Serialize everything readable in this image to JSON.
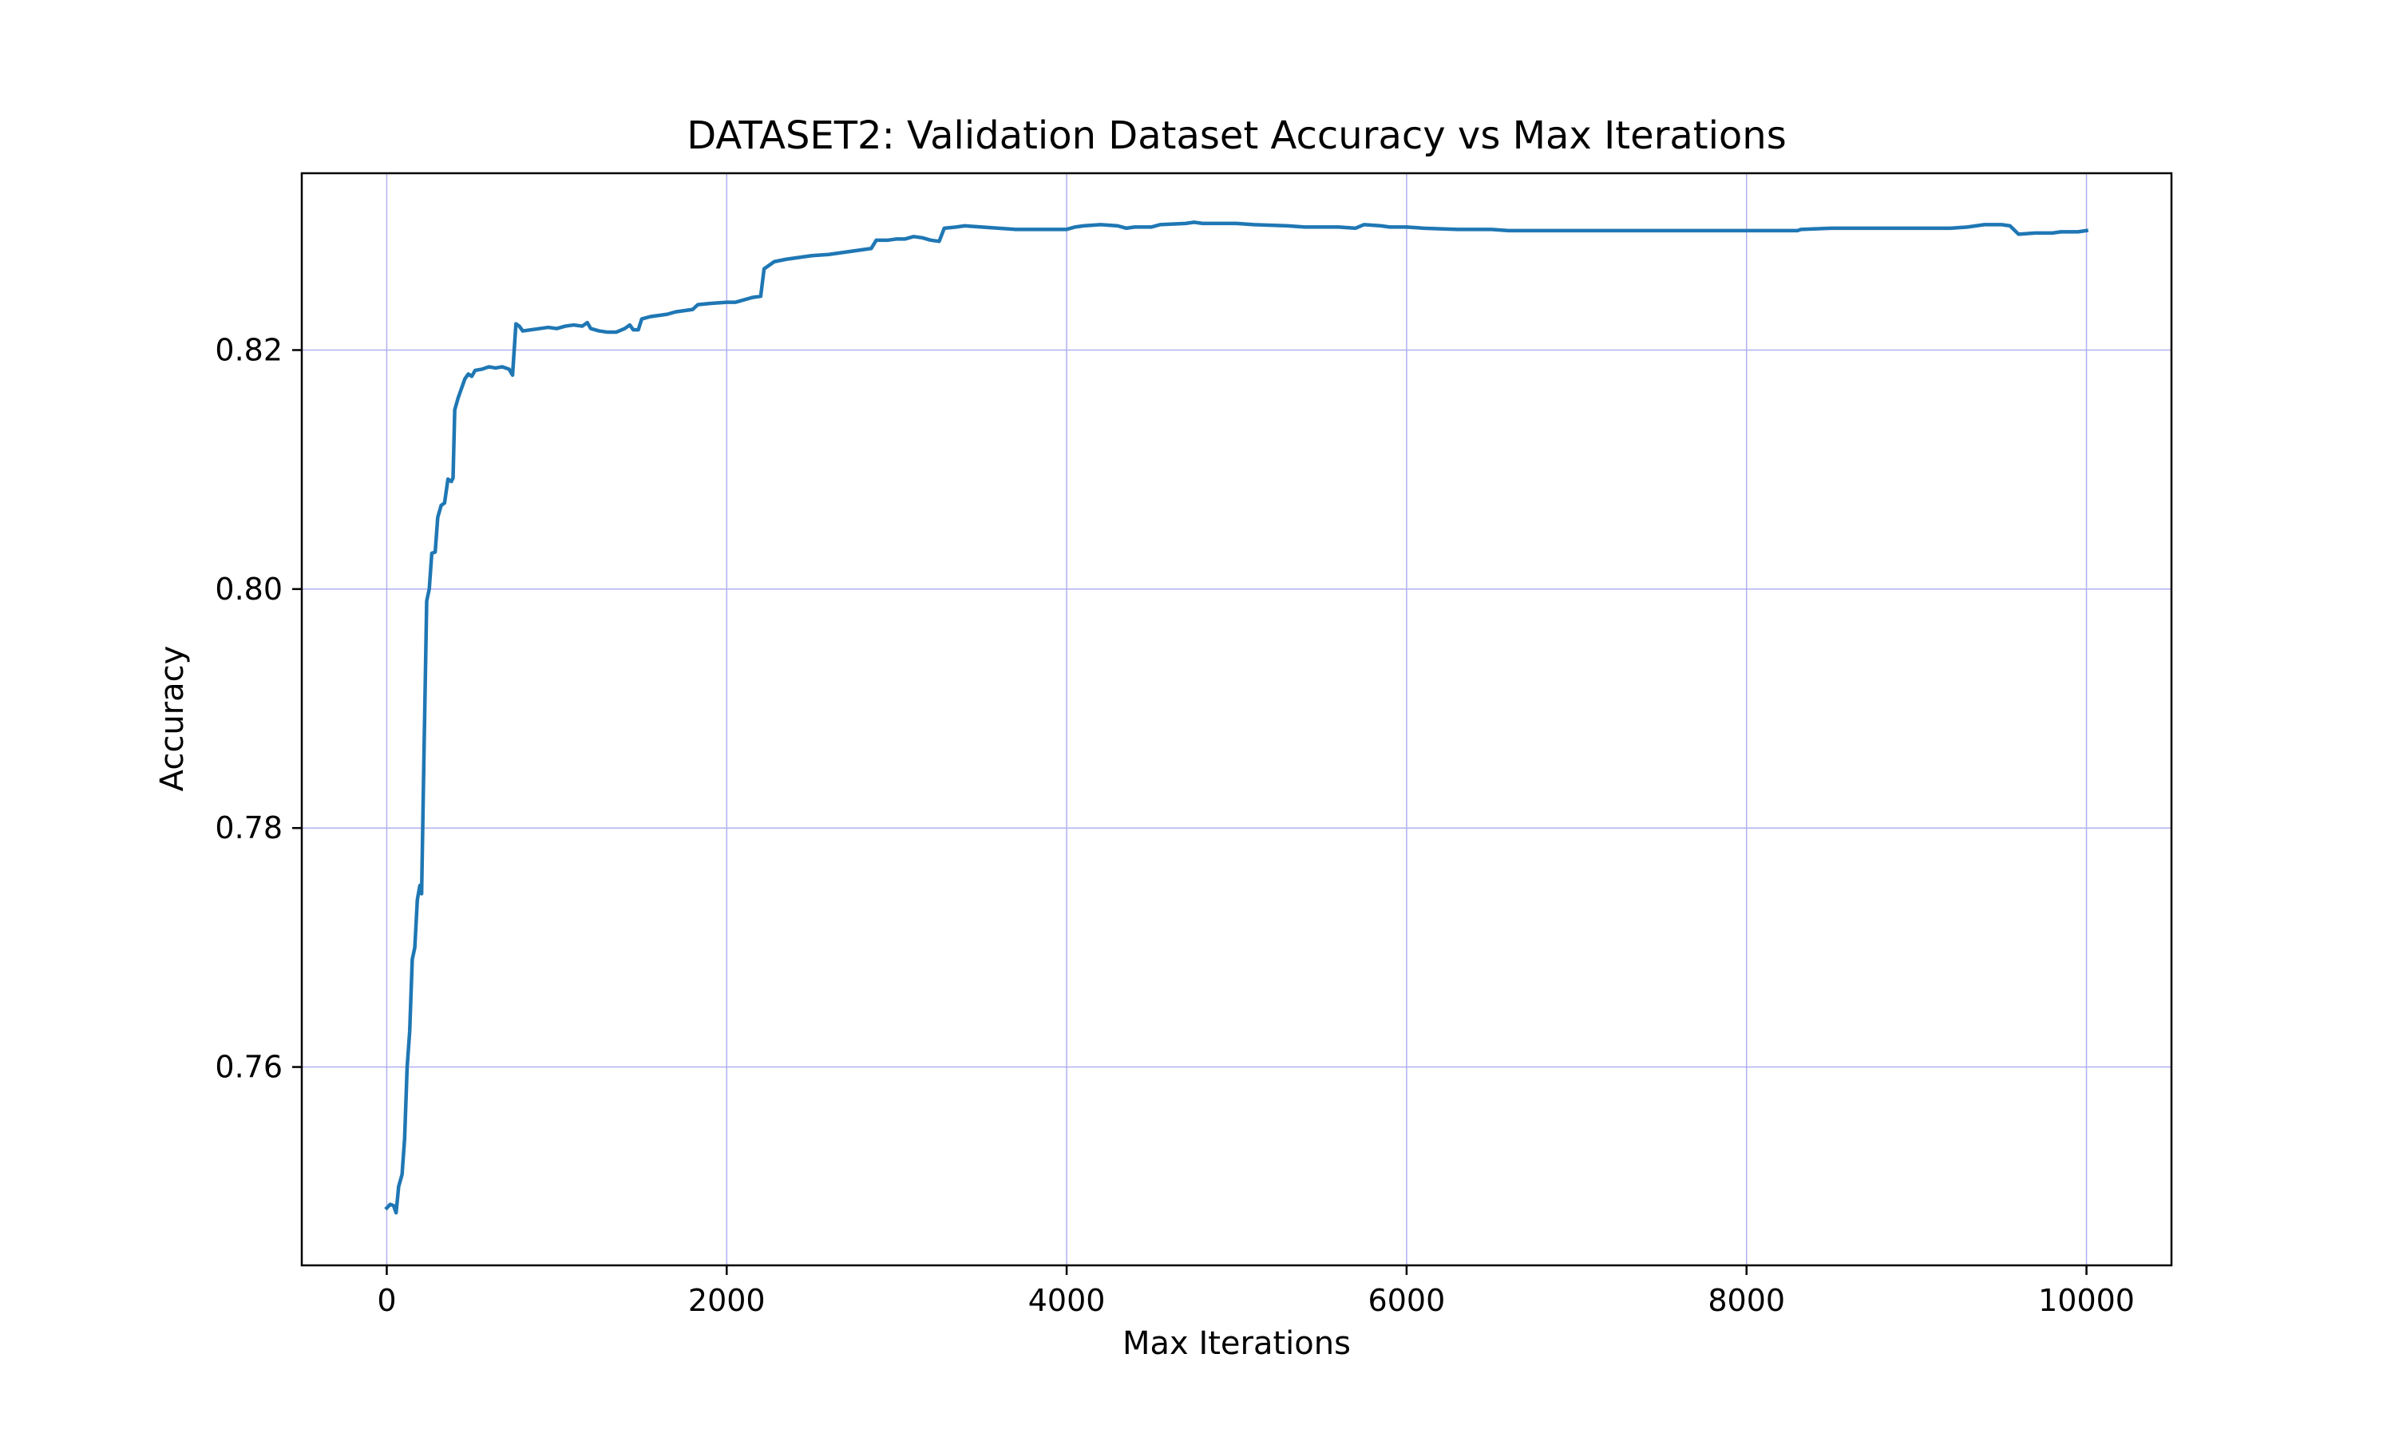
{
  "chart_data": {
    "type": "line",
    "title": "DATASET2: Validation Dataset Accuracy vs Max Iterations",
    "xlabel": "Max Iterations",
    "ylabel": "Accuracy",
    "xlim": [
      -500,
      10500
    ],
    "ylim": [
      0.7434,
      0.8348
    ],
    "x_ticks": [
      0,
      2000,
      4000,
      6000,
      8000,
      10000
    ],
    "x_tick_labels": [
      "0",
      "2000",
      "4000",
      "6000",
      "8000",
      "10000"
    ],
    "y_ticks": [
      0.76,
      0.78,
      0.8,
      0.82
    ],
    "y_tick_labels": [
      "0.76",
      "0.78",
      "0.80",
      "0.82"
    ],
    "grid": true,
    "grid_color": "#b0b0f0",
    "line_color": "#1f77b4",
    "series": [
      {
        "values": [
          [
            0,
            0.7482
          ],
          [
            20,
            0.7485
          ],
          [
            40,
            0.7484
          ],
          [
            55,
            0.7478
          ],
          [
            70,
            0.75
          ],
          [
            90,
            0.751
          ],
          [
            105,
            0.754
          ],
          [
            120,
            0.76
          ],
          [
            135,
            0.763
          ],
          [
            150,
            0.769
          ],
          [
            165,
            0.77
          ],
          [
            180,
            0.774
          ],
          [
            195,
            0.7752
          ],
          [
            205,
            0.7745
          ],
          [
            220,
            0.787
          ],
          [
            235,
            0.799
          ],
          [
            250,
            0.8
          ],
          [
            265,
            0.803
          ],
          [
            285,
            0.8031
          ],
          [
            300,
            0.806
          ],
          [
            320,
            0.807
          ],
          [
            340,
            0.8072
          ],
          [
            360,
            0.8092
          ],
          [
            380,
            0.809
          ],
          [
            390,
            0.8093
          ],
          [
            400,
            0.815
          ],
          [
            420,
            0.816
          ],
          [
            440,
            0.8168
          ],
          [
            460,
            0.8176
          ],
          [
            480,
            0.818
          ],
          [
            500,
            0.8178
          ],
          [
            520,
            0.8183
          ],
          [
            560,
            0.8184
          ],
          [
            600,
            0.8186
          ],
          [
            640,
            0.8185
          ],
          [
            680,
            0.8186
          ],
          [
            720,
            0.8184
          ],
          [
            740,
            0.8179
          ],
          [
            760,
            0.8222
          ],
          [
            780,
            0.822
          ],
          [
            800,
            0.8216
          ],
          [
            850,
            0.8217
          ],
          [
            900,
            0.8218
          ],
          [
            950,
            0.8219
          ],
          [
            1000,
            0.8218
          ],
          [
            1050,
            0.822
          ],
          [
            1100,
            0.8221
          ],
          [
            1150,
            0.822
          ],
          [
            1180,
            0.8223
          ],
          [
            1200,
            0.8218
          ],
          [
            1250,
            0.8216
          ],
          [
            1300,
            0.8215
          ],
          [
            1350,
            0.8215
          ],
          [
            1400,
            0.8218
          ],
          [
            1430,
            0.8221
          ],
          [
            1450,
            0.8217
          ],
          [
            1480,
            0.8217
          ],
          [
            1500,
            0.8226
          ],
          [
            1550,
            0.8228
          ],
          [
            1600,
            0.8229
          ],
          [
            1650,
            0.823
          ],
          [
            1700,
            0.8232
          ],
          [
            1750,
            0.8233
          ],
          [
            1800,
            0.8234
          ],
          [
            1830,
            0.8238
          ],
          [
            1900,
            0.8239
          ],
          [
            2000,
            0.824
          ],
          [
            2050,
            0.824
          ],
          [
            2100,
            0.8242
          ],
          [
            2150,
            0.8244
          ],
          [
            2200,
            0.8245
          ],
          [
            2220,
            0.8268
          ],
          [
            2240,
            0.827
          ],
          [
            2280,
            0.8274
          ],
          [
            2350,
            0.8276
          ],
          [
            2400,
            0.8277
          ],
          [
            2500,
            0.8279
          ],
          [
            2600,
            0.828
          ],
          [
            2700,
            0.8282
          ],
          [
            2800,
            0.8284
          ],
          [
            2850,
            0.8285
          ],
          [
            2880,
            0.8292
          ],
          [
            2950,
            0.8292
          ],
          [
            3000,
            0.8293
          ],
          [
            3050,
            0.8293
          ],
          [
            3100,
            0.8295
          ],
          [
            3150,
            0.8294
          ],
          [
            3200,
            0.8292
          ],
          [
            3250,
            0.8291
          ],
          [
            3280,
            0.8302
          ],
          [
            3350,
            0.8303
          ],
          [
            3400,
            0.8304
          ],
          [
            3500,
            0.8303
          ],
          [
            3600,
            0.8302
          ],
          [
            3700,
            0.8301
          ],
          [
            3800,
            0.8301
          ],
          [
            4000,
            0.8301
          ],
          [
            4050,
            0.8303
          ],
          [
            4100,
            0.8304
          ],
          [
            4200,
            0.8305
          ],
          [
            4300,
            0.8304
          ],
          [
            4350,
            0.8302
          ],
          [
            4400,
            0.8303
          ],
          [
            4500,
            0.8303
          ],
          [
            4550,
            0.8305
          ],
          [
            4700,
            0.8306
          ],
          [
            4750,
            0.8307
          ],
          [
            4800,
            0.8306
          ],
          [
            5000,
            0.8306
          ],
          [
            5100,
            0.8305
          ],
          [
            5300,
            0.8304
          ],
          [
            5400,
            0.8303
          ],
          [
            5600,
            0.8303
          ],
          [
            5700,
            0.8302
          ],
          [
            5750,
            0.8305
          ],
          [
            5850,
            0.8304
          ],
          [
            5900,
            0.8303
          ],
          [
            6000,
            0.8303
          ],
          [
            6100,
            0.8302
          ],
          [
            6300,
            0.8301
          ],
          [
            6500,
            0.8301
          ],
          [
            6600,
            0.83
          ],
          [
            7000,
            0.83
          ],
          [
            7500,
            0.83
          ],
          [
            7600,
            0.83
          ],
          [
            8000,
            0.83
          ],
          [
            8300,
            0.83
          ],
          [
            8320,
            0.8301
          ],
          [
            8500,
            0.8302
          ],
          [
            8700,
            0.8302
          ],
          [
            9000,
            0.8302
          ],
          [
            9200,
            0.8302
          ],
          [
            9300,
            0.8303
          ],
          [
            9400,
            0.8305
          ],
          [
            9500,
            0.8305
          ],
          [
            9550,
            0.8304
          ],
          [
            9600,
            0.8297
          ],
          [
            9700,
            0.8298
          ],
          [
            9800,
            0.8298
          ],
          [
            9850,
            0.8299
          ],
          [
            9950,
            0.8299
          ],
          [
            10000,
            0.83
          ]
        ]
      }
    ]
  }
}
